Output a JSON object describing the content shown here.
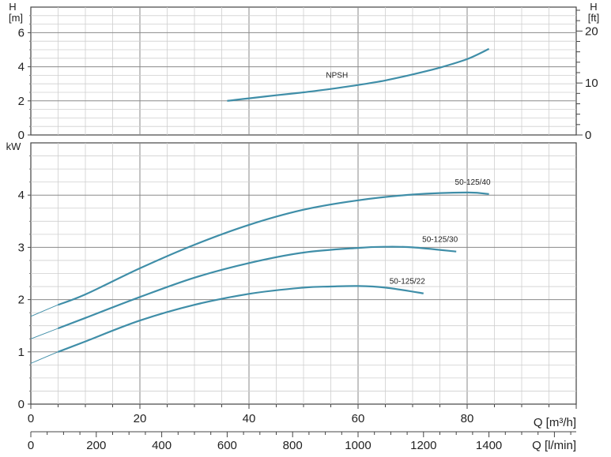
{
  "chart_data": [
    {
      "type": "line",
      "panel": "npsh",
      "ylabel_left": "H",
      "yunit_left": "[m]",
      "ylabel_right": "H",
      "yunit_right": "[ft]",
      "ylim": [
        0,
        7.5
      ],
      "yticks_left": [
        0,
        2,
        4,
        6
      ],
      "yticks_right": [
        0,
        10,
        20
      ],
      "ft_per_m": 3.28084,
      "grid": true,
      "series": [
        {
          "name": "NPSH",
          "color": "#3f8ea8",
          "x": [
            36,
            40,
            45,
            50,
            55,
            60,
            65,
            70,
            75,
            80,
            84
          ],
          "y": [
            2.0,
            2.15,
            2.33,
            2.5,
            2.7,
            2.93,
            3.2,
            3.55,
            3.95,
            4.45,
            5.05
          ]
        }
      ]
    },
    {
      "type": "line",
      "panel": "power",
      "ylabel": "kW",
      "ylim": [
        0,
        5
      ],
      "yticks": [
        0,
        1,
        2,
        3,
        4
      ],
      "grid": true,
      "series": [
        {
          "name": "50-125/40",
          "color": "#3f8ea8",
          "x": [
            0,
            5,
            10,
            20,
            30,
            40,
            50,
            60,
            70,
            80,
            84
          ],
          "y": [
            1.68,
            1.9,
            2.1,
            2.6,
            3.05,
            3.43,
            3.72,
            3.9,
            4.01,
            4.05,
            4.02
          ]
        },
        {
          "name": "50-125/30",
          "color": "#3f8ea8",
          "x": [
            0,
            5,
            10,
            20,
            30,
            40,
            50,
            60,
            65,
            70,
            78
          ],
          "y": [
            1.25,
            1.45,
            1.65,
            2.05,
            2.42,
            2.7,
            2.9,
            2.99,
            3.01,
            3.0,
            2.92
          ]
        },
        {
          "name": "50-125/22",
          "color": "#3f8ea8",
          "x": [
            0,
            5,
            10,
            20,
            30,
            40,
            50,
            55,
            60,
            65,
            72
          ],
          "y": [
            0.78,
            1.0,
            1.2,
            1.6,
            1.9,
            2.11,
            2.23,
            2.25,
            2.26,
            2.23,
            2.12
          ]
        }
      ]
    }
  ],
  "x_axis": {
    "xlim": [
      0,
      100
    ],
    "m3h_label": "Q [m³/h]",
    "m3h_ticks": [
      0,
      20,
      40,
      60,
      80
    ],
    "lmin_label": "Q [l/min]",
    "lmin_ticks": [
      0,
      200,
      400,
      600,
      800,
      1000,
      1200,
      1400
    ],
    "lmin_per_m3h": 16.6667
  }
}
